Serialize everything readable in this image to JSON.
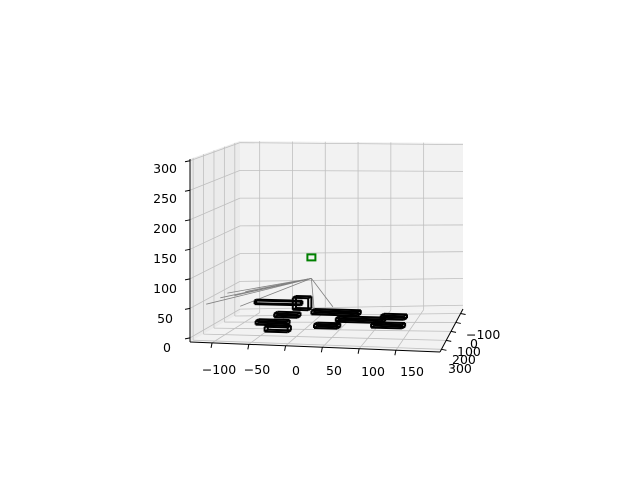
{
  "chart_data": {
    "type": "scatter",
    "projection": "3d",
    "title": "",
    "xlabel": "",
    "ylabel": "",
    "zlabel": "",
    "grid": true,
    "x_ticks": [
      "−100",
      "−50",
      "0",
      "50",
      "100",
      "150"
    ],
    "y_ticks": [
      "−100",
      "0",
      "100",
      "200",
      "300"
    ],
    "z_ticks": [
      "0",
      "50",
      "100",
      "150",
      "200",
      "250",
      "300"
    ],
    "xlim": [
      -150,
      190
    ],
    "ylim": [
      -150,
      330
    ],
    "zlim": [
      0,
      310
    ],
    "colors": {
      "pane": "#f2f2f2",
      "pane_side": "#ebebeb",
      "grid": "#bfbfbf",
      "boxes": "#000000",
      "rays": "#808080",
      "marker": "#008000"
    },
    "series": [
      {
        "name": "",
        "style": "wireframe-boxes",
        "color": "#000000",
        "boxes": [
          {
            "x": 0,
            "y": 0,
            "z": 30,
            "dx": 20,
            "dy": 20,
            "dz": 20
          },
          {
            "x": -60,
            "y": -40,
            "z": 30,
            "dx": 60,
            "dy": 10,
            "dz": 6
          },
          {
            "x": -40,
            "y": 40,
            "z": 10,
            "dx": 40,
            "dy": 20,
            "dz": 6
          },
          {
            "x": -20,
            "y": 20,
            "z": 20,
            "dx": 30,
            "dy": 20,
            "dz": 6
          },
          {
            "x": 20,
            "y": -20,
            "z": 20,
            "dx": 60,
            "dy": 20,
            "dz": 6
          },
          {
            "x": 60,
            "y": 20,
            "z": 15,
            "dx": 60,
            "dy": 20,
            "dz": 6
          },
          {
            "x": 110,
            "y": 40,
            "z": 10,
            "dx": 40,
            "dy": 20,
            "dz": 6
          },
          {
            "x": 110,
            "y": -20,
            "z": 15,
            "dx": 30,
            "dy": 20,
            "dz": 6
          },
          {
            "x": -20,
            "y": 80,
            "z": 5,
            "dx": 30,
            "dy": 20,
            "dz": 8
          },
          {
            "x": 40,
            "y": 60,
            "z": 10,
            "dx": 30,
            "dy": 20,
            "dz": 6
          }
        ]
      },
      {
        "name": "",
        "style": "rays",
        "color": "#808080",
        "origin": {
          "x": 20,
          "y": 0,
          "z": 80
        },
        "endpoints": [
          {
            "x": -90,
            "y": 40,
            "z": 50
          },
          {
            "x": -85,
            "y": 20,
            "z": 55
          },
          {
            "x": -80,
            "y": 0,
            "z": 48
          },
          {
            "x": -70,
            "y": -20,
            "z": 52
          },
          {
            "x": -60,
            "y": 60,
            "z": 40
          },
          {
            "x": -100,
            "y": 80,
            "z": 45
          },
          {
            "x": 30,
            "y": 30,
            "z": 30
          },
          {
            "x": 50,
            "y": 10,
            "z": 35
          }
        ]
      },
      {
        "name": "",
        "style": "marker",
        "color": "#008000",
        "points": [
          {
            "x": 20,
            "y": 0,
            "z": 115
          }
        ]
      }
    ]
  }
}
